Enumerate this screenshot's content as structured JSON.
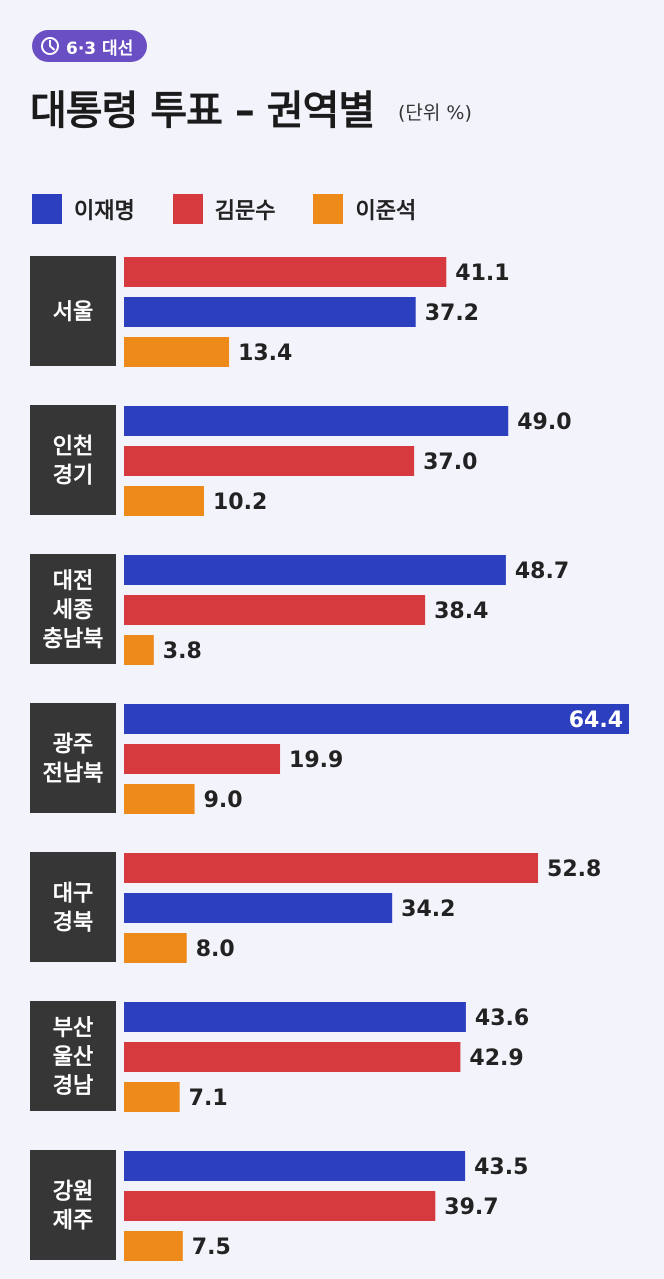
{
  "header": {
    "badge_label": "6·3 대선",
    "title": "대통령 투표 – 권역별",
    "unit": "(단위 %)"
  },
  "colors": {
    "이재명": "#2b3fbf",
    "김문수": "#d63a3f",
    "이준석": "#ee8a1a",
    "region_box": "#363636",
    "badge": "#6a4fc4"
  },
  "chart_data": {
    "type": "bar",
    "orientation": "horizontal",
    "unit": "%",
    "legend": [
      "이재명",
      "김문수",
      "이준석"
    ],
    "regions": [
      {
        "name": [
          "서울"
        ],
        "bars": [
          {
            "candidate": "김문수",
            "value": 41.1
          },
          {
            "candidate": "이재명",
            "value": 37.2
          },
          {
            "candidate": "이준석",
            "value": 13.4
          }
        ]
      },
      {
        "name": [
          "인천",
          "경기"
        ],
        "bars": [
          {
            "candidate": "이재명",
            "value": 49.0
          },
          {
            "candidate": "김문수",
            "value": 37.0
          },
          {
            "candidate": "이준석",
            "value": 10.2
          }
        ]
      },
      {
        "name": [
          "대전",
          "세종",
          "충남북"
        ],
        "bars": [
          {
            "candidate": "이재명",
            "value": 48.7
          },
          {
            "candidate": "김문수",
            "value": 38.4
          },
          {
            "candidate": "이준석",
            "value": 3.8
          }
        ]
      },
      {
        "name": [
          "광주",
          "전남북"
        ],
        "bars": [
          {
            "candidate": "이재명",
            "value": 64.4
          },
          {
            "candidate": "김문수",
            "value": 19.9
          },
          {
            "candidate": "이준석",
            "value": 9.0
          }
        ]
      },
      {
        "name": [
          "대구",
          "경북"
        ],
        "bars": [
          {
            "candidate": "김문수",
            "value": 52.8
          },
          {
            "candidate": "이재명",
            "value": 34.2
          },
          {
            "candidate": "이준석",
            "value": 8.0
          }
        ]
      },
      {
        "name": [
          "부산",
          "울산",
          "경남"
        ],
        "bars": [
          {
            "candidate": "이재명",
            "value": 43.6
          },
          {
            "candidate": "김문수",
            "value": 42.9
          },
          {
            "candidate": "이준석",
            "value": 7.1
          }
        ]
      },
      {
        "name": [
          "강원",
          "제주"
        ],
        "bars": [
          {
            "candidate": "이재명",
            "value": 43.5
          },
          {
            "candidate": "김문수",
            "value": 39.7
          },
          {
            "candidate": "이준석",
            "value": 7.5
          }
        ]
      }
    ]
  }
}
